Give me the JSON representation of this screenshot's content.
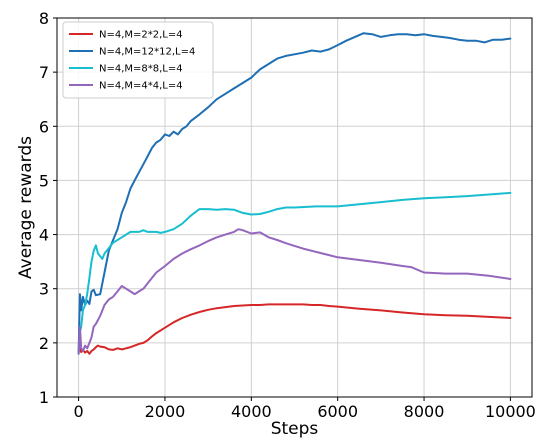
{
  "chart_data": {
    "type": "line",
    "title": "",
    "xlabel": "Steps",
    "ylabel": "Average rewards",
    "xlim": [
      -500,
      10500
    ],
    "ylim": [
      1,
      8
    ],
    "xticks": [
      0,
      2000,
      4000,
      6000,
      8000,
      10000
    ],
    "yticks": [
      1,
      2,
      3,
      4,
      5,
      6,
      7,
      8
    ],
    "grid": true,
    "legend_position": "top-left",
    "series": [
      {
        "name": "N=4,M=2*2,L=4",
        "color": "#d62728",
        "x": [
          0,
          30,
          60,
          100,
          150,
          200,
          250,
          300,
          350,
          400,
          450,
          500,
          600,
          700,
          800,
          900,
          1000,
          1100,
          1200,
          1300,
          1400,
          1500,
          1600,
          1700,
          1800,
          2000,
          2200,
          2400,
          2600,
          2800,
          3000,
          3200,
          3400,
          3600,
          3800,
          4000,
          4200,
          4400,
          4600,
          4800,
          5000,
          5200,
          5400,
          5600,
          5800,
          6000,
          6500,
          7000,
          7500,
          8000,
          8500,
          9000,
          9500,
          10000
        ],
        "y": [
          1.85,
          1.9,
          1.83,
          1.87,
          1.82,
          1.85,
          1.8,
          1.85,
          1.88,
          1.92,
          1.95,
          1.93,
          1.92,
          1.88,
          1.87,
          1.9,
          1.88,
          1.9,
          1.92,
          1.95,
          1.98,
          2.0,
          2.05,
          2.12,
          2.18,
          2.28,
          2.38,
          2.46,
          2.52,
          2.57,
          2.61,
          2.64,
          2.66,
          2.68,
          2.69,
          2.7,
          2.7,
          2.71,
          2.71,
          2.71,
          2.71,
          2.71,
          2.7,
          2.7,
          2.68,
          2.67,
          2.63,
          2.6,
          2.56,
          2.53,
          2.51,
          2.5,
          2.48,
          2.46
        ]
      },
      {
        "name": "N=4,M=12*12,L=4",
        "color": "#1f6fb4",
        "x": [
          0,
          30,
          60,
          100,
          150,
          200,
          250,
          300,
          350,
          400,
          500,
          600,
          700,
          800,
          900,
          1000,
          1100,
          1200,
          1300,
          1400,
          1500,
          1600,
          1700,
          1800,
          1900,
          2000,
          2100,
          2200,
          2300,
          2400,
          2500,
          2600,
          2800,
          3000,
          3200,
          3400,
          3600,
          3800,
          4000,
          4200,
          4400,
          4600,
          4800,
          5000,
          5200,
          5400,
          5600,
          5800,
          6000,
          6200,
          6400,
          6600,
          6800,
          7000,
          7200,
          7400,
          7600,
          7800,
          8000,
          8200,
          8400,
          8600,
          8800,
          9000,
          9200,
          9400,
          9600,
          9800,
          10000
        ],
        "y": [
          1.8,
          2.9,
          2.6,
          2.85,
          2.7,
          2.78,
          2.72,
          2.95,
          2.98,
          2.88,
          2.9,
          3.3,
          3.7,
          3.9,
          4.1,
          4.4,
          4.6,
          4.85,
          5.0,
          5.15,
          5.3,
          5.45,
          5.6,
          5.7,
          5.75,
          5.85,
          5.82,
          5.9,
          5.85,
          5.95,
          6.0,
          6.1,
          6.22,
          6.35,
          6.5,
          6.6,
          6.7,
          6.8,
          6.9,
          7.05,
          7.15,
          7.25,
          7.3,
          7.33,
          7.36,
          7.4,
          7.38,
          7.42,
          7.5,
          7.58,
          7.65,
          7.72,
          7.7,
          7.65,
          7.68,
          7.7,
          7.7,
          7.68,
          7.7,
          7.67,
          7.65,
          7.63,
          7.6,
          7.58,
          7.58,
          7.55,
          7.6,
          7.6,
          7.62
        ]
      },
      {
        "name": "N=4,M=8*8,L=4",
        "color": "#17becf",
        "x": [
          0,
          30,
          60,
          100,
          150,
          200,
          250,
          300,
          350,
          400,
          450,
          500,
          550,
          600,
          700,
          800,
          900,
          1000,
          1100,
          1200,
          1300,
          1400,
          1500,
          1600,
          1700,
          1800,
          1900,
          2000,
          2200,
          2400,
          2600,
          2800,
          3000,
          3200,
          3400,
          3600,
          3800,
          4000,
          4200,
          4400,
          4600,
          4800,
          5000,
          5500,
          6000,
          6500,
          7000,
          7500,
          8000,
          8500,
          9000,
          9500,
          10000
        ],
        "y": [
          1.8,
          2.2,
          2.3,
          2.6,
          2.7,
          2.9,
          3.2,
          3.5,
          3.7,
          3.8,
          3.65,
          3.6,
          3.55,
          3.65,
          3.75,
          3.85,
          3.9,
          3.95,
          4.0,
          4.05,
          4.05,
          4.05,
          4.08,
          4.05,
          4.05,
          4.05,
          4.03,
          4.05,
          4.1,
          4.2,
          4.35,
          4.47,
          4.47,
          4.46,
          4.47,
          4.46,
          4.4,
          4.37,
          4.38,
          4.42,
          4.47,
          4.5,
          4.5,
          4.52,
          4.52,
          4.56,
          4.6,
          4.64,
          4.67,
          4.69,
          4.71,
          4.74,
          4.77
        ]
      },
      {
        "name": "N=4,M=4*4,L=4",
        "color": "#9467bd",
        "x": [
          0,
          30,
          60,
          100,
          150,
          200,
          250,
          300,
          350,
          400,
          500,
          600,
          700,
          800,
          900,
          1000,
          1100,
          1200,
          1300,
          1400,
          1500,
          1600,
          1700,
          1800,
          2000,
          2200,
          2400,
          2600,
          2800,
          3000,
          3200,
          3400,
          3600,
          3700,
          3800,
          4000,
          4200,
          4400,
          4600,
          4800,
          5000,
          5200,
          5400,
          5600,
          5800,
          6000,
          6500,
          7000,
          7500,
          7700,
          8000,
          8500,
          9000,
          9500,
          10000
        ],
        "y": [
          1.8,
          2.3,
          1.9,
          1.85,
          1.95,
          1.9,
          2.0,
          2.1,
          2.3,
          2.35,
          2.5,
          2.7,
          2.8,
          2.85,
          2.95,
          3.05,
          3.0,
          2.95,
          2.9,
          2.95,
          3.0,
          3.1,
          3.2,
          3.3,
          3.42,
          3.55,
          3.65,
          3.73,
          3.8,
          3.88,
          3.95,
          4.0,
          4.05,
          4.1,
          4.08,
          4.02,
          4.04,
          3.95,
          3.9,
          3.84,
          3.79,
          3.74,
          3.7,
          3.66,
          3.62,
          3.58,
          3.53,
          3.48,
          3.42,
          3.4,
          3.3,
          3.28,
          3.28,
          3.24,
          3.18
        ]
      }
    ]
  }
}
